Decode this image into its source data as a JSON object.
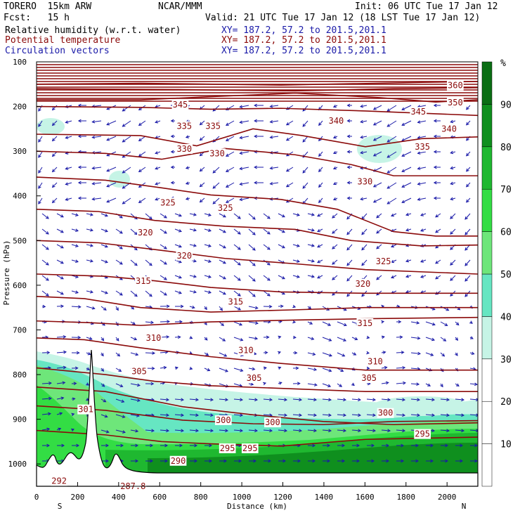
{
  "header": {
    "model": "TORERO  15km ARW",
    "org": "NCAR/MMM",
    "init": "Init: 06 UTC Tue 17 Jan 12",
    "fcst": "Fcst:   15 h",
    "valid": "Valid: 21 UTC Tue 17 Jan 12 (18 LST Tue 17 Jan 12)",
    "fields": [
      {
        "label": "Relative humidity (w.r.t. water)",
        "xy": "XY= 187.2, 57.2 to 201.5,201.1",
        "color": "#000000"
      },
      {
        "label": "Potential temperature",
        "xy": "XY= 187.2, 57.2 to 201.5,201.1",
        "color": "#8b0a0a"
      },
      {
        "label": "Circulation vectors",
        "xy": "XY= 187.2, 57.2 to 201.5,201.1",
        "color": "#1a1aa8"
      }
    ]
  },
  "chart_data": {
    "type": "cross-section",
    "xlabel": "Distance (km)",
    "ylabel": "Pressure (hPa)",
    "xlim": [
      0,
      2150
    ],
    "ylim": [
      1050,
      100
    ],
    "x_ticks": [
      0,
      200,
      400,
      600,
      800,
      1000,
      1200,
      1400,
      1600,
      1800,
      2000
    ],
    "y_ticks": [
      100,
      200,
      300,
      400,
      500,
      600,
      700,
      800,
      900,
      1000
    ],
    "x_end_labels": {
      "left": "S",
      "right": "N"
    },
    "colorbar": {
      "unit": "%",
      "levels": [
        10,
        20,
        30,
        40,
        50,
        60,
        70,
        80,
        90
      ],
      "colors": [
        "#ffffff",
        "#ffffff",
        "#ffffff",
        "#c6f4e6",
        "#66e6c2",
        "#6ee67a",
        "#33dd44",
        "#1fb830",
        "#0f8f1e",
        "#0a6e14"
      ]
    },
    "theta_labels": [
      {
        "text": "360",
        "x": 2040,
        "p": 153
      },
      {
        "text": "350",
        "x": 2040,
        "p": 191
      },
      {
        "text": "345",
        "x": 700,
        "p": 196
      },
      {
        "text": "345",
        "x": 1860,
        "p": 212
      },
      {
        "text": "340",
        "x": 1460,
        "p": 232
      },
      {
        "text": "340",
        "x": 2010,
        "p": 250
      },
      {
        "text": "335",
        "x": 720,
        "p": 244
      },
      {
        "text": "335",
        "x": 860,
        "p": 244
      },
      {
        "text": "335",
        "x": 1880,
        "p": 290
      },
      {
        "text": "330",
        "x": 720,
        "p": 295
      },
      {
        "text": "330",
        "x": 880,
        "p": 305
      },
      {
        "text": "330",
        "x": 1600,
        "p": 368
      },
      {
        "text": "325",
        "x": 640,
        "p": 415
      },
      {
        "text": "325",
        "x": 920,
        "p": 427
      },
      {
        "text": "325",
        "x": 1690,
        "p": 547
      },
      {
        "text": "320",
        "x": 530,
        "p": 482
      },
      {
        "text": "320",
        "x": 720,
        "p": 534
      },
      {
        "text": "320",
        "x": 1590,
        "p": 597
      },
      {
        "text": "315",
        "x": 520,
        "p": 591
      },
      {
        "text": "315",
        "x": 970,
        "p": 637
      },
      {
        "text": "315",
        "x": 1600,
        "p": 685
      },
      {
        "text": "310",
        "x": 570,
        "p": 718
      },
      {
        "text": "310",
        "x": 1020,
        "p": 746
      },
      {
        "text": "310",
        "x": 1650,
        "p": 771
      },
      {
        "text": "305",
        "x": 500,
        "p": 793
      },
      {
        "text": "305",
        "x": 1060,
        "p": 808
      },
      {
        "text": "305",
        "x": 1620,
        "p": 808
      },
      {
        "text": "301",
        "x": 240,
        "p": 878
      },
      {
        "text": "300",
        "x": 910,
        "p": 902
      },
      {
        "text": "300",
        "x": 1150,
        "p": 907
      },
      {
        "text": "300",
        "x": 1700,
        "p": 886
      },
      {
        "text": "295",
        "x": 930,
        "p": 965
      },
      {
        "text": "295",
        "x": 1040,
        "p": 965
      },
      {
        "text": "295",
        "x": 1880,
        "p": 933
      },
      {
        "text": "290",
        "x": 690,
        "p": 993
      },
      {
        "text": "292",
        "x": 110,
        "p": 1038
      },
      {
        "text": "287.8",
        "x": 470,
        "p": 1050
      }
    ]
  }
}
